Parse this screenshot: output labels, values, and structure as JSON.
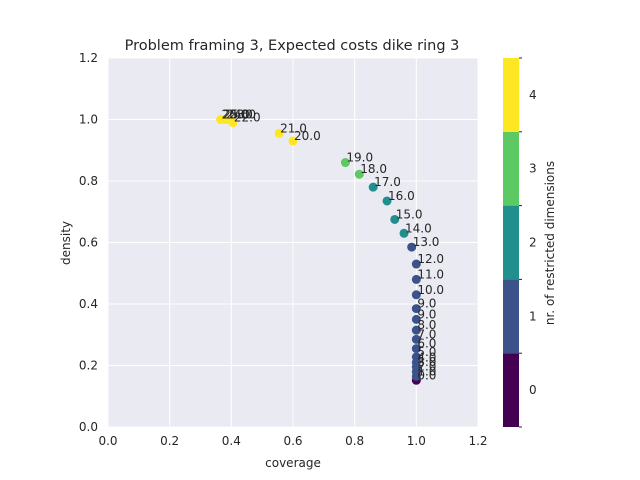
{
  "chart_data": {
    "type": "scatter",
    "title": "Problem framing 3, Expected costs dike ring 3",
    "xlabel": "coverage",
    "ylabel": "density",
    "xlim": [
      0.0,
      1.2
    ],
    "ylim": [
      0.0,
      1.2
    ],
    "x_ticks": [
      "0.0",
      "0.2",
      "0.4",
      "0.6",
      "0.8",
      "1.0",
      "1.2"
    ],
    "y_ticks": [
      "0.0",
      "0.2",
      "0.4",
      "0.6",
      "0.8",
      "1.0",
      "1.2"
    ],
    "grid": true,
    "colorbar": {
      "label": "nr. of restricted dimensions",
      "ticks": [
        "0",
        "1",
        "2",
        "3",
        "4"
      ],
      "colors": [
        "#440154",
        "#3b528b",
        "#21908d",
        "#5dc963",
        "#fde725"
      ]
    },
    "points": [
      {
        "label": "0.0",
        "x": 1.0,
        "y": 0.152,
        "dims": 0
      },
      {
        "label": "1.0",
        "x": 1.0,
        "y": 0.165,
        "dims": 1
      },
      {
        "label": "2.0",
        "x": 1.0,
        "y": 0.18,
        "dims": 1
      },
      {
        "label": "3.0",
        "x": 1.0,
        "y": 0.195,
        "dims": 1
      },
      {
        "label": "4.0",
        "x": 1.0,
        "y": 0.21,
        "dims": 1
      },
      {
        "label": "5.0",
        "x": 1.0,
        "y": 0.228,
        "dims": 1
      },
      {
        "label": "6.0",
        "x": 1.0,
        "y": 0.255,
        "dims": 1
      },
      {
        "label": "7.0",
        "x": 1.0,
        "y": 0.285,
        "dims": 1
      },
      {
        "label": "8.0",
        "x": 1.0,
        "y": 0.315,
        "dims": 1
      },
      {
        "label": "9.0",
        "x": 1.0,
        "y": 0.35,
        "dims": 1
      },
      {
        "label": "9.0",
        "x": 1.0,
        "y": 0.385,
        "dims": 1
      },
      {
        "label": "10.0",
        "x": 1.0,
        "y": 0.43,
        "dims": 1
      },
      {
        "label": "11.0",
        "x": 1.0,
        "y": 0.48,
        "dims": 1
      },
      {
        "label": "12.0",
        "x": 1.0,
        "y": 0.53,
        "dims": 1
      },
      {
        "label": "13.0",
        "x": 0.985,
        "y": 0.585,
        "dims": 1
      },
      {
        "label": "14.0",
        "x": 0.96,
        "y": 0.63,
        "dims": 2
      },
      {
        "label": "15.0",
        "x": 0.93,
        "y": 0.675,
        "dims": 2
      },
      {
        "label": "16.0",
        "x": 0.905,
        "y": 0.735,
        "dims": 2
      },
      {
        "label": "17.0",
        "x": 0.86,
        "y": 0.78,
        "dims": 2
      },
      {
        "label": "18.0",
        "x": 0.815,
        "y": 0.822,
        "dims": 3
      },
      {
        "label": "19.0",
        "x": 0.77,
        "y": 0.86,
        "dims": 3
      },
      {
        "label": "20.0",
        "x": 0.6,
        "y": 0.93,
        "dims": 4
      },
      {
        "label": "21.0",
        "x": 0.555,
        "y": 0.955,
        "dims": 4
      },
      {
        "label": "22.0",
        "x": 0.405,
        "y": 0.99,
        "dims": 4
      },
      {
        "label": "23.0",
        "x": 0.39,
        "y": 1.0,
        "dims": 4
      },
      {
        "label": "24.0",
        "x": 0.38,
        "y": 1.0,
        "dims": 4
      },
      {
        "label": "25.0",
        "x": 0.37,
        "y": 1.0,
        "dims": 4
      },
      {
        "label": "26.0",
        "x": 0.365,
        "y": 1.0,
        "dims": 4
      }
    ]
  }
}
